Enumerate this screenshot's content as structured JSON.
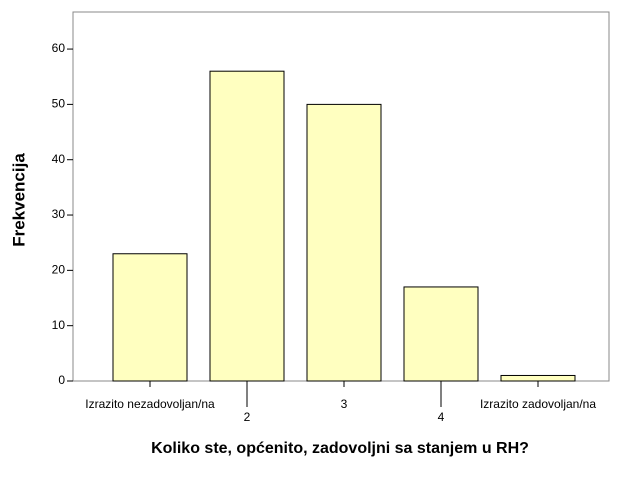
{
  "chart_data": {
    "type": "bar",
    "categories": [
      "Izrazito nezadovoljan/na",
      "2",
      "3",
      "4",
      "Izrazito zadovoljan/na"
    ],
    "values": [
      23,
      56,
      50,
      17,
      1
    ],
    "color": "#ffffc0",
    "ylim": [
      0,
      66.7
    ],
    "yticks": [
      0,
      10,
      20,
      30,
      40,
      50,
      60
    ],
    "xlabel": "Koliko ste, općenito, zadovoljni sa stanjem u RH?",
    "ylabel": "Frekvencija"
  }
}
